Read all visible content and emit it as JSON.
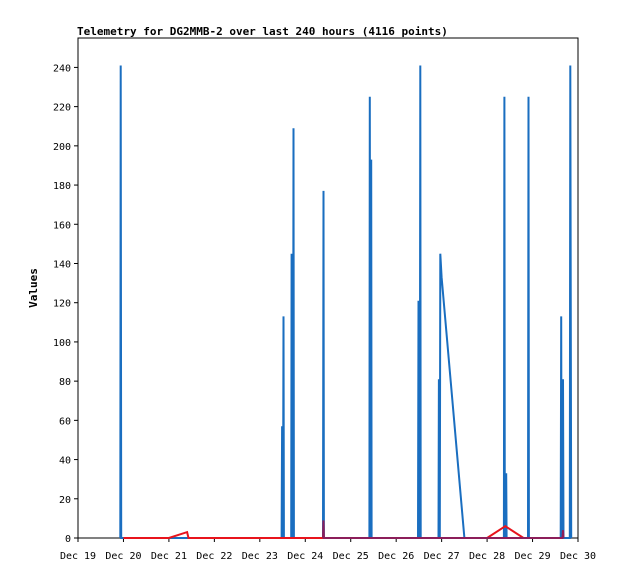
{
  "chart_data": {
    "type": "line",
    "title": "Telemetry for DG2MMB-2 over last 240 hours (4116 points)",
    "xlabel": "",
    "ylabel": "Values",
    "xlim": [
      0,
      11
    ],
    "ylim": [
      0,
      255
    ],
    "x_unit": "days from Dec 19",
    "yticks": [
      0,
      20,
      40,
      60,
      80,
      100,
      120,
      140,
      160,
      180,
      200,
      220,
      240
    ],
    "xticks": [
      {
        "x": 0,
        "label": "Dec 19"
      },
      {
        "x": 1,
        "label": "Dec 20"
      },
      {
        "x": 2,
        "label": "Dec 21"
      },
      {
        "x": 3,
        "label": "Dec 22"
      },
      {
        "x": 4,
        "label": "Dec 23"
      },
      {
        "x": 5,
        "label": "Dec 24"
      },
      {
        "x": 6,
        "label": "Dec 25"
      },
      {
        "x": 7,
        "label": "Dec 26"
      },
      {
        "x": 8,
        "label": "Dec 27"
      },
      {
        "x": 9,
        "label": "Dec 28"
      },
      {
        "x": 10,
        "label": "Dec 29"
      },
      {
        "x": 11,
        "label": "Dec 30"
      }
    ],
    "grid": false,
    "legend": "none",
    "colors": {
      "blue": "#1a6ec0",
      "red": "#e8141c",
      "purple": "#8c1e5a"
    },
    "series": [
      {
        "color": "#1a6ec0",
        "points": [
          [
            0.93,
            0
          ],
          [
            0.94,
            241
          ],
          [
            0.95,
            0
          ],
          [
            4.48,
            0
          ],
          [
            4.49,
            57
          ],
          [
            4.5,
            0
          ],
          [
            4.51,
            0
          ],
          [
            4.52,
            113
          ],
          [
            4.53,
            0
          ],
          [
            4.69,
            0
          ],
          [
            4.7,
            145
          ],
          [
            4.71,
            0
          ],
          [
            4.73,
            0
          ],
          [
            4.74,
            209
          ],
          [
            4.75,
            0
          ],
          [
            5.39,
            0
          ],
          [
            5.4,
            177
          ],
          [
            5.41,
            0
          ],
          [
            6.41,
            0
          ],
          [
            6.42,
            225
          ],
          [
            6.43,
            0
          ],
          [
            6.44,
            0
          ],
          [
            6.45,
            193
          ],
          [
            6.46,
            0
          ],
          [
            7.48,
            0
          ],
          [
            7.49,
            121
          ],
          [
            7.5,
            0
          ],
          [
            7.52,
            0
          ],
          [
            7.53,
            241
          ],
          [
            7.54,
            0
          ],
          [
            7.93,
            0
          ],
          [
            7.94,
            81
          ],
          [
            7.95,
            0
          ],
          [
            7.96,
            0
          ],
          [
            7.97,
            145
          ],
          [
            8.0,
            133
          ],
          [
            8.5,
            0
          ],
          [
            9.37,
            0
          ],
          [
            9.38,
            225
          ],
          [
            9.39,
            0
          ],
          [
            9.41,
            0
          ],
          [
            9.42,
            33
          ],
          [
            9.43,
            0
          ],
          [
            9.9,
            0
          ],
          [
            9.91,
            225
          ],
          [
            9.92,
            0
          ],
          [
            10.62,
            0
          ],
          [
            10.63,
            113
          ],
          [
            10.64,
            0
          ],
          [
            10.66,
            0
          ],
          [
            10.67,
            81
          ],
          [
            10.68,
            0
          ],
          [
            10.82,
            0
          ],
          [
            10.83,
            241
          ],
          [
            10.85,
            0
          ]
        ]
      },
      {
        "color": "#e8141c",
        "points": [
          [
            1.0,
            0
          ],
          [
            2.0,
            0
          ],
          [
            2.4,
            3
          ],
          [
            2.43,
            0
          ],
          [
            2.8,
            0
          ],
          [
            9.0,
            0
          ],
          [
            9.4,
            6
          ],
          [
            9.8,
            0
          ],
          [
            10.0,
            0
          ]
        ]
      },
      {
        "color": "#8c1e5a",
        "points": [
          [
            5.39,
            0
          ],
          [
            5.4,
            9
          ],
          [
            5.41,
            0
          ],
          [
            10.66,
            0
          ],
          [
            10.67,
            4
          ],
          [
            10.68,
            0
          ]
        ]
      }
    ]
  }
}
